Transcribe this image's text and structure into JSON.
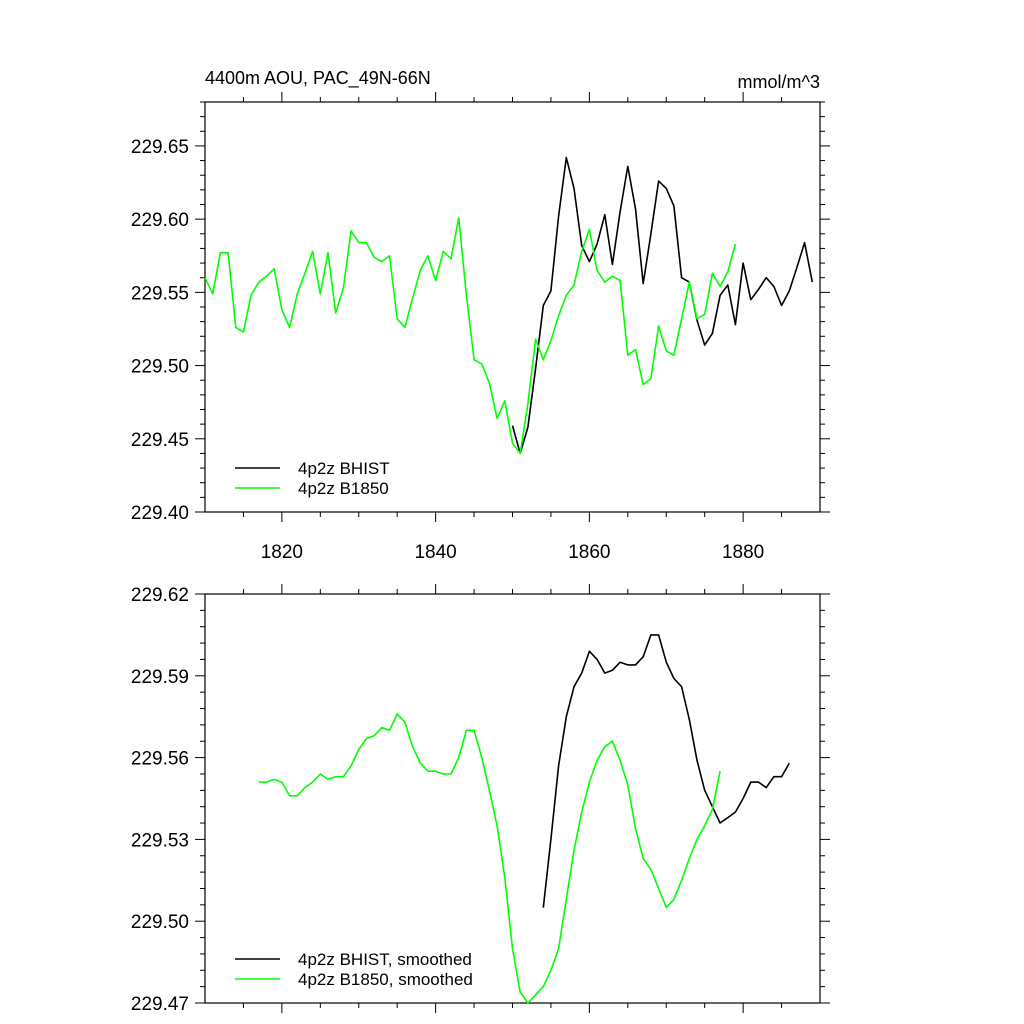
{
  "chart_data": [
    {
      "type": "line",
      "title_left": "4400m AOU, PAC_49N-66N",
      "title_right": "mmol/m^3",
      "xlim": [
        1810,
        1890
      ],
      "ylim": [
        229.4,
        229.68
      ],
      "xticks": [
        1820,
        1840,
        1860,
        1880
      ],
      "xtick_labels": [
        "1820",
        "1840",
        "1860",
        "1880"
      ],
      "yticks": [
        229.4,
        229.45,
        229.5,
        229.55,
        229.6,
        229.65
      ],
      "ytick_labels": [
        "229.40",
        "229.45",
        "229.50",
        "229.55",
        "229.60",
        "229.65"
      ],
      "legend": {
        "position": "bottom-left"
      },
      "series": [
        {
          "name": "4p2z BHIST",
          "color": "#000000",
          "x": [
            1850,
            1851,
            1852,
            1853,
            1854,
            1855,
            1856,
            1857,
            1858,
            1859,
            1860,
            1861,
            1862,
            1863,
            1864,
            1865,
            1866,
            1867,
            1868,
            1869,
            1870,
            1871,
            1872,
            1873,
            1874,
            1875,
            1876,
            1877,
            1878,
            1879,
            1880,
            1881,
            1882,
            1883,
            1884,
            1885,
            1886,
            1887,
            1888,
            1889
          ],
          "y": [
            229.459,
            229.44,
            229.458,
            229.498,
            229.541,
            229.551,
            229.602,
            229.642,
            229.621,
            229.582,
            229.571,
            229.583,
            229.603,
            229.569,
            229.605,
            229.636,
            229.607,
            229.556,
            229.59,
            229.626,
            229.621,
            229.609,
            229.56,
            229.557,
            229.531,
            229.514,
            229.522,
            229.548,
            229.555,
            229.528,
            229.57,
            229.545,
            229.552,
            229.56,
            229.554,
            229.541,
            229.551,
            229.567,
            229.584,
            229.557
          ]
        },
        {
          "name": "4p2z B1850",
          "color": "#00ff00",
          "x": [
            1810,
            1811,
            1812,
            1813,
            1814,
            1815,
            1816,
            1817,
            1818,
            1819,
            1820,
            1821,
            1822,
            1823,
            1824,
            1825,
            1826,
            1827,
            1828,
            1829,
            1830,
            1831,
            1832,
            1833,
            1834,
            1835,
            1836,
            1837,
            1838,
            1839,
            1840,
            1841,
            1842,
            1843,
            1844,
            1845,
            1846,
            1847,
            1848,
            1849,
            1850,
            1851,
            1852,
            1853,
            1854,
            1855,
            1856,
            1857,
            1858,
            1859,
            1860,
            1861,
            1862,
            1863,
            1864,
            1865,
            1866,
            1867,
            1868,
            1869,
            1870,
            1871,
            1872,
            1873,
            1874,
            1875,
            1876,
            1877,
            1878,
            1879
          ],
          "y": [
            229.56,
            229.549,
            229.577,
            229.577,
            229.526,
            229.523,
            229.548,
            229.557,
            229.561,
            229.566,
            229.538,
            229.526,
            229.549,
            229.563,
            229.578,
            229.549,
            229.577,
            229.536,
            229.553,
            229.592,
            229.584,
            229.584,
            229.574,
            229.571,
            229.575,
            229.532,
            229.526,
            229.546,
            229.565,
            229.575,
            229.558,
            229.578,
            229.573,
            229.601,
            229.548,
            229.504,
            229.501,
            229.488,
            229.464,
            229.476,
            229.447,
            229.44,
            229.474,
            229.518,
            229.504,
            229.517,
            229.534,
            229.548,
            229.555,
            229.578,
            229.593,
            229.565,
            229.557,
            229.561,
            229.558,
            229.507,
            229.511,
            229.487,
            229.491,
            229.527,
            229.51,
            229.507,
            229.532,
            229.557,
            229.532,
            229.535,
            229.563,
            229.554,
            229.564,
            229.583
          ]
        }
      ]
    },
    {
      "type": "line",
      "xlim": [
        1810,
        1890
      ],
      "ylim": [
        229.47,
        229.62
      ],
      "xticks": [
        1820,
        1840,
        1860,
        1880
      ],
      "yticks": [
        229.47,
        229.5,
        229.53,
        229.56,
        229.59,
        229.62
      ],
      "ytick_labels": [
        "229.47",
        "229.50",
        "229.53",
        "229.56",
        "229.59",
        "229.62"
      ],
      "legend": {
        "position": "bottom-left"
      },
      "series": [
        {
          "name": "4p2z BHIST, smoothed",
          "color": "#000000",
          "x": [
            1854,
            1855,
            1856,
            1857,
            1858,
            1859,
            1860,
            1861,
            1862,
            1863,
            1864,
            1865,
            1866,
            1867,
            1868,
            1869,
            1870,
            1871,
            1872,
            1873,
            1874,
            1875,
            1876,
            1877,
            1878,
            1879,
            1880,
            1881,
            1882,
            1883,
            1884,
            1885,
            1886
          ],
          "y": [
            229.505,
            229.53,
            229.557,
            229.575,
            229.586,
            229.591,
            229.599,
            229.596,
            229.591,
            229.592,
            229.595,
            229.594,
            229.594,
            229.597,
            229.605,
            229.605,
            229.595,
            229.589,
            229.586,
            229.574,
            229.559,
            229.548,
            229.542,
            229.536,
            229.538,
            229.54,
            229.545,
            229.551,
            229.551,
            229.549,
            229.553,
            229.553,
            229.558
          ]
        },
        {
          "name": "4p2z B1850, smoothed",
          "color": "#00ff00",
          "x": [
            1817,
            1818,
            1819,
            1820,
            1821,
            1822,
            1823,
            1824,
            1825,
            1826,
            1827,
            1828,
            1829,
            1830,
            1831,
            1832,
            1833,
            1834,
            1835,
            1836,
            1837,
            1838,
            1839,
            1840,
            1841,
            1842,
            1843,
            1844,
            1845,
            1846,
            1847,
            1848,
            1849,
            1850,
            1851,
            1852,
            1853,
            1854,
            1855,
            1856,
            1857,
            1858,
            1859,
            1860,
            1861,
            1862,
            1863,
            1864,
            1865,
            1866,
            1867,
            1868,
            1869,
            1870,
            1871,
            1872,
            1873,
            1874,
            1875,
            1876,
            1877
          ],
          "y": [
            229.551,
            229.551,
            229.552,
            229.551,
            229.546,
            229.546,
            229.549,
            229.551,
            229.554,
            229.552,
            229.553,
            229.553,
            229.557,
            229.563,
            229.567,
            229.568,
            229.571,
            229.57,
            229.576,
            229.573,
            229.564,
            229.558,
            229.555,
            229.555,
            229.554,
            229.554,
            229.56,
            229.57,
            229.57,
            229.56,
            229.548,
            229.535,
            229.516,
            229.49,
            229.474,
            229.47,
            229.473,
            229.476,
            229.482,
            229.49,
            229.508,
            229.526,
            229.54,
            229.551,
            229.559,
            229.564,
            229.566,
            229.559,
            229.55,
            229.534,
            229.523,
            229.519,
            229.512,
            229.505,
            229.508,
            229.515,
            229.523,
            229.53,
            229.535,
            229.541,
            229.555
          ]
        }
      ]
    }
  ]
}
